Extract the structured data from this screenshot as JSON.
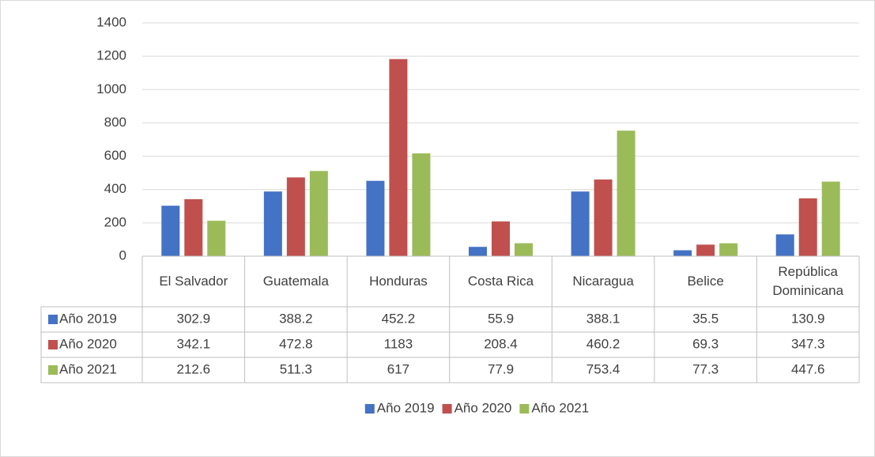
{
  "chart_data": {
    "type": "bar",
    "categories": [
      "El Salvador",
      "Guatemala",
      "Honduras",
      "Costa Rica",
      "Nicaragua",
      "Belice",
      "República Dominicana"
    ],
    "series": [
      {
        "name": "Año 2019",
        "color": "#4472c4",
        "values": [
          302.9,
          388.2,
          452.2,
          55.9,
          388.1,
          35.5,
          130.9
        ]
      },
      {
        "name": "Año 2020",
        "color": "#c0504d",
        "values": [
          342.1,
          472.8,
          1183,
          208.4,
          460.2,
          69.3,
          347.3
        ]
      },
      {
        "name": "Año 2021",
        "color": "#9bbb59",
        "values": [
          212.6,
          511.3,
          617,
          77.9,
          753.4,
          77.3,
          447.6
        ]
      }
    ],
    "ylim": [
      0,
      1400
    ],
    "yticks": [
      0,
      200,
      400,
      600,
      800,
      1000,
      1200,
      1400
    ],
    "grid": true,
    "legend": "bottom",
    "data_table": true
  }
}
